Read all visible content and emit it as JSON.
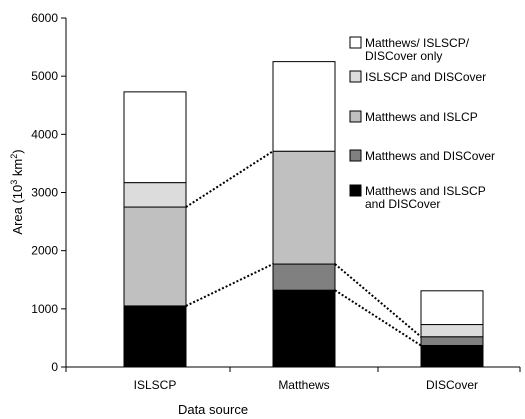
{
  "chart_data": {
    "type": "bar",
    "stacked": true,
    "categories": [
      "ISLSCP",
      "Matthews",
      "DISCover"
    ],
    "xlabel": "Data source",
    "ylabel_parts": [
      "Area (10",
      "3",
      " km",
      "2",
      ")"
    ],
    "ylim": [
      0,
      6000
    ],
    "yticks": [
      0,
      1000,
      2000,
      3000,
      4000,
      5000,
      6000
    ],
    "grid": false,
    "legend_placement": "right",
    "series": [
      {
        "name_lines": [
          "Matthews and ISLSCP",
          "and DISCover"
        ],
        "color": "#000000",
        "values": [
          1050,
          1320,
          370
        ]
      },
      {
        "name_lines": [
          "Matthews and DISCover"
        ],
        "color": "#808080",
        "values": [
          0,
          450,
          150
        ]
      },
      {
        "name_lines": [
          "Matthews and ISLCP"
        ],
        "color": "#c0c0c0",
        "values": [
          1700,
          1940,
          0
        ]
      },
      {
        "name_lines": [
          "ISLSCP and DISCover"
        ],
        "color": "#dcdcdc",
        "values": [
          420,
          0,
          210
        ]
      },
      {
        "name_lines": [
          "Matthews/ ISLSCP/",
          "DISCover only"
        ],
        "color": "#ffffff",
        "values": [
          1560,
          1540,
          580
        ]
      }
    ],
    "connectors": [
      {
        "from": [
          0,
          1050
        ],
        "to": [
          1,
          1770
        ]
      },
      {
        "from": [
          0,
          2750
        ],
        "to": [
          1,
          3710
        ]
      },
      {
        "from": [
          1,
          1770
        ],
        "to": [
          2,
          520
        ]
      },
      {
        "from": [
          1,
          1320
        ],
        "to": [
          2,
          370
        ]
      }
    ]
  }
}
